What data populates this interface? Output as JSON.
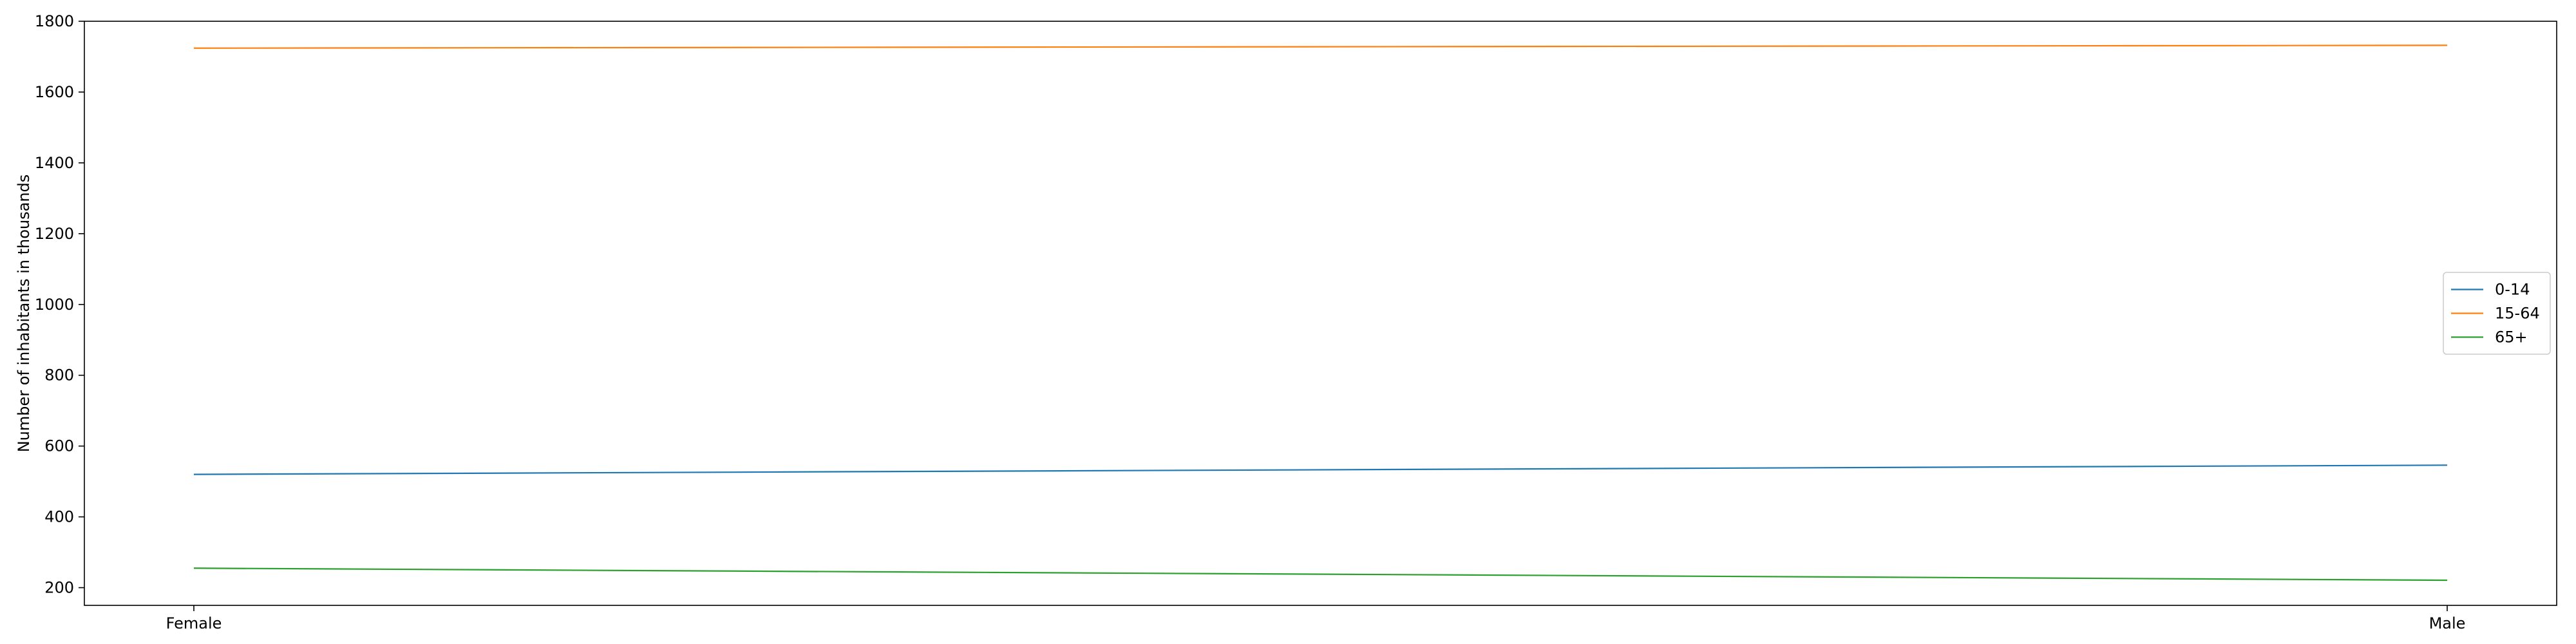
{
  "chart_data": {
    "type": "line",
    "title": "",
    "xlabel": "",
    "ylabel": "Number of inhabitants in thousands",
    "categories": [
      "Female",
      "Male"
    ],
    "ylim": [
      150,
      1800
    ],
    "yticks": [
      200,
      400,
      600,
      800,
      1000,
      1200,
      1400,
      1600,
      1800
    ],
    "grid": false,
    "legend_position": "center-right",
    "series": [
      {
        "name": "0-14",
        "color": "#1f77b4",
        "values": [
          520,
          546
        ]
      },
      {
        "name": "15-64",
        "color": "#ff7f0e",
        "values": [
          1724,
          1732
        ]
      },
      {
        "name": "65+",
        "color": "#2ca02c",
        "values": [
          255,
          221
        ]
      }
    ]
  }
}
